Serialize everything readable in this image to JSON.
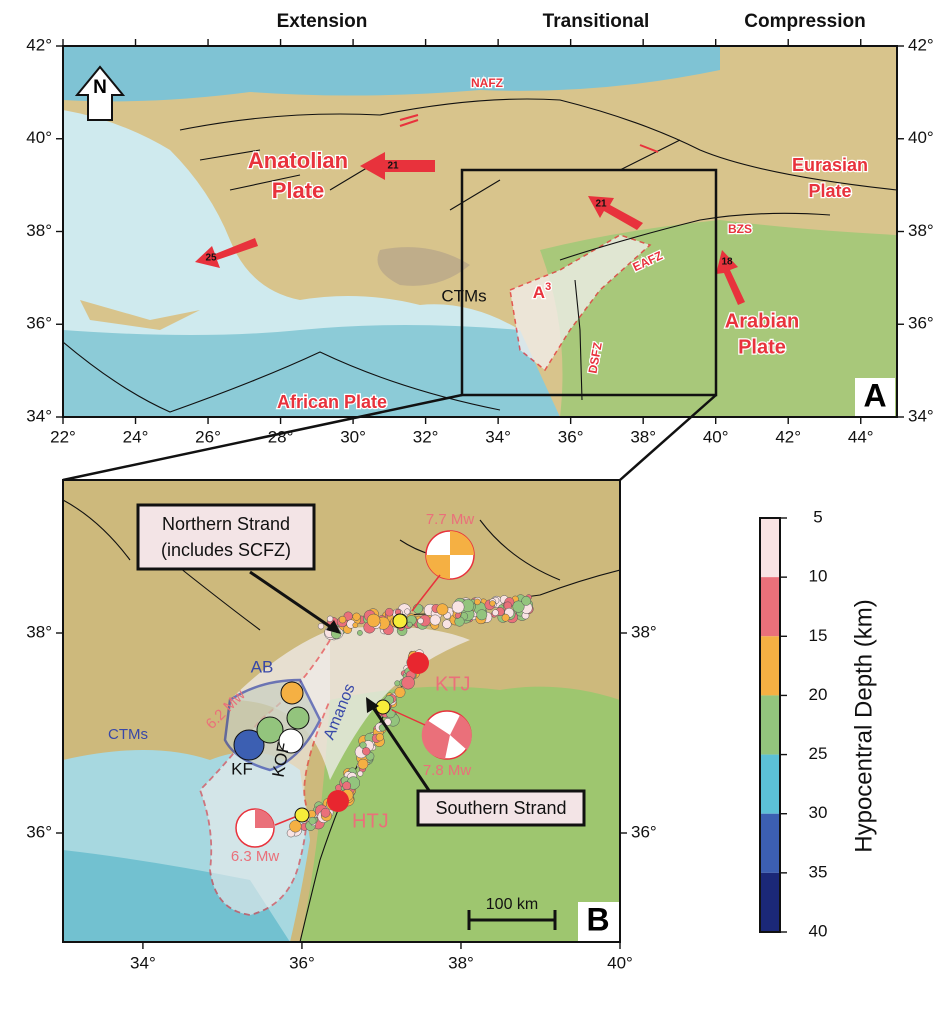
{
  "header": {
    "left": "Extension",
    "middle": "Transitional",
    "right": "Compression"
  },
  "panel_a": {
    "letter": "A",
    "north": "N",
    "lon_ticks": [
      {
        "value": 22,
        "label": "22°"
      },
      {
        "value": 24,
        "label": "24°"
      },
      {
        "value": 26,
        "label": "26°"
      },
      {
        "value": 28,
        "label": "28°"
      },
      {
        "value": 30,
        "label": "30°"
      },
      {
        "value": 32,
        "label": "32°"
      },
      {
        "value": 34,
        "label": "34°"
      },
      {
        "value": 36,
        "label": "36°"
      },
      {
        "value": 38,
        "label": "38°"
      },
      {
        "value": 40,
        "label": "40°"
      },
      {
        "value": 42,
        "label": "42°"
      },
      {
        "value": 44,
        "label": "44°"
      }
    ],
    "lat_ticks": [
      {
        "value": 34,
        "label": "34°"
      },
      {
        "value": 36,
        "label": "36°"
      },
      {
        "value": 38,
        "label": "38°"
      },
      {
        "value": 40,
        "label": "40°"
      },
      {
        "value": 42,
        "label": "42°"
      }
    ],
    "labels": {
      "nafz": "NAFZ",
      "anatolian_1": "Anatolian",
      "anatolian_2": "Plate",
      "eurasian_1": "Eurasian",
      "eurasian_2": "Plate",
      "bzs": "BZS",
      "eafz": "EAFZ",
      "dsfz": "DSFZ",
      "ctms": "CTMs",
      "a3_base": "A",
      "a3_sup": "3",
      "arabian_1": "Arabian",
      "arabian_2": "Plate",
      "african": "African Plate"
    },
    "velocities": {
      "anatolia": 21,
      "aegean": 25,
      "east": 21,
      "arabia": 18
    }
  },
  "panel_b": {
    "letter": "B",
    "lon_ticks": [
      {
        "value": 34,
        "label": "34°"
      },
      {
        "value": 36,
        "label": "36°"
      },
      {
        "value": 38,
        "label": "38°"
      },
      {
        "value": 40,
        "label": "40°"
      }
    ],
    "lat_ticks": [
      {
        "value": 36,
        "label": "36°"
      },
      {
        "value": 38,
        "label": "38°"
      }
    ],
    "labels": {
      "northern_1": "Northern Strand",
      "northern_2": "(includes SCFZ)",
      "southern": "Southern Strand",
      "mw77": "7.7 Mw",
      "mw78": "7.8 Mw",
      "mw63": "6.3 Mw",
      "mw62": "6.2 Mw",
      "ktj": "KTJ",
      "htj": "HTJ",
      "ab": "AB",
      "amanos": "Amanos",
      "ctms": "CTMs",
      "kf": "KF",
      "kof": "KOF",
      "scale": "100 km"
    }
  },
  "colorbar": {
    "label": "Hypocentral Depth (km)",
    "lim": [
      5,
      40
    ],
    "ticks": [
      5,
      10,
      15,
      20,
      25,
      30,
      35,
      40
    ],
    "colors": [
      "#f9e3e3",
      "#ea707a",
      "#f5b043",
      "#93c47d",
      "#5cc0d6",
      "#3c5fb2",
      "#1b2878"
    ]
  }
}
